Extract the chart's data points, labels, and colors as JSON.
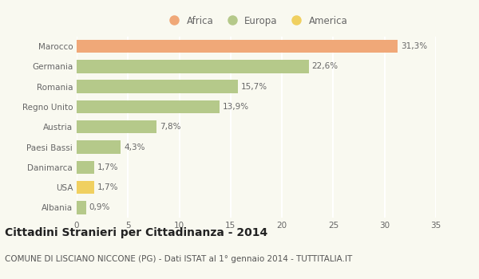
{
  "categories": [
    "Marocco",
    "Germania",
    "Romania",
    "Regno Unito",
    "Austria",
    "Paesi Bassi",
    "Danimarca",
    "USA",
    "Albania"
  ],
  "values": [
    31.3,
    22.6,
    15.7,
    13.9,
    7.8,
    4.3,
    1.7,
    1.7,
    0.9
  ],
  "labels": [
    "31,3%",
    "22,6%",
    "15,7%",
    "13,9%",
    "7,8%",
    "4,3%",
    "1,7%",
    "1,7%",
    "0,9%"
  ],
  "colors": [
    "#f0a878",
    "#b5c98a",
    "#b5c98a",
    "#b5c98a",
    "#b5c98a",
    "#b5c98a",
    "#b5c98a",
    "#f0d060",
    "#b5c98a"
  ],
  "legend_labels": [
    "Africa",
    "Europa",
    "America"
  ],
  "legend_colors": [
    "#f0a878",
    "#b5c98a",
    "#f0d060"
  ],
  "xlim": [
    0,
    35
  ],
  "xticks": [
    0,
    5,
    10,
    15,
    20,
    25,
    30,
    35
  ],
  "title": "Cittadini Stranieri per Cittadinanza - 2014",
  "subtitle": "COMUNE DI LISCIANO NICCONE (PG) - Dati ISTAT al 1° gennaio 2014 - TUTTITALIA.IT",
  "background_color": "#f9f9f0",
  "grid_color": "#ffffff",
  "bar_height": 0.65,
  "title_fontsize": 10,
  "subtitle_fontsize": 7.5,
  "label_fontsize": 7.5,
  "tick_fontsize": 7.5,
  "legend_fontsize": 8.5
}
